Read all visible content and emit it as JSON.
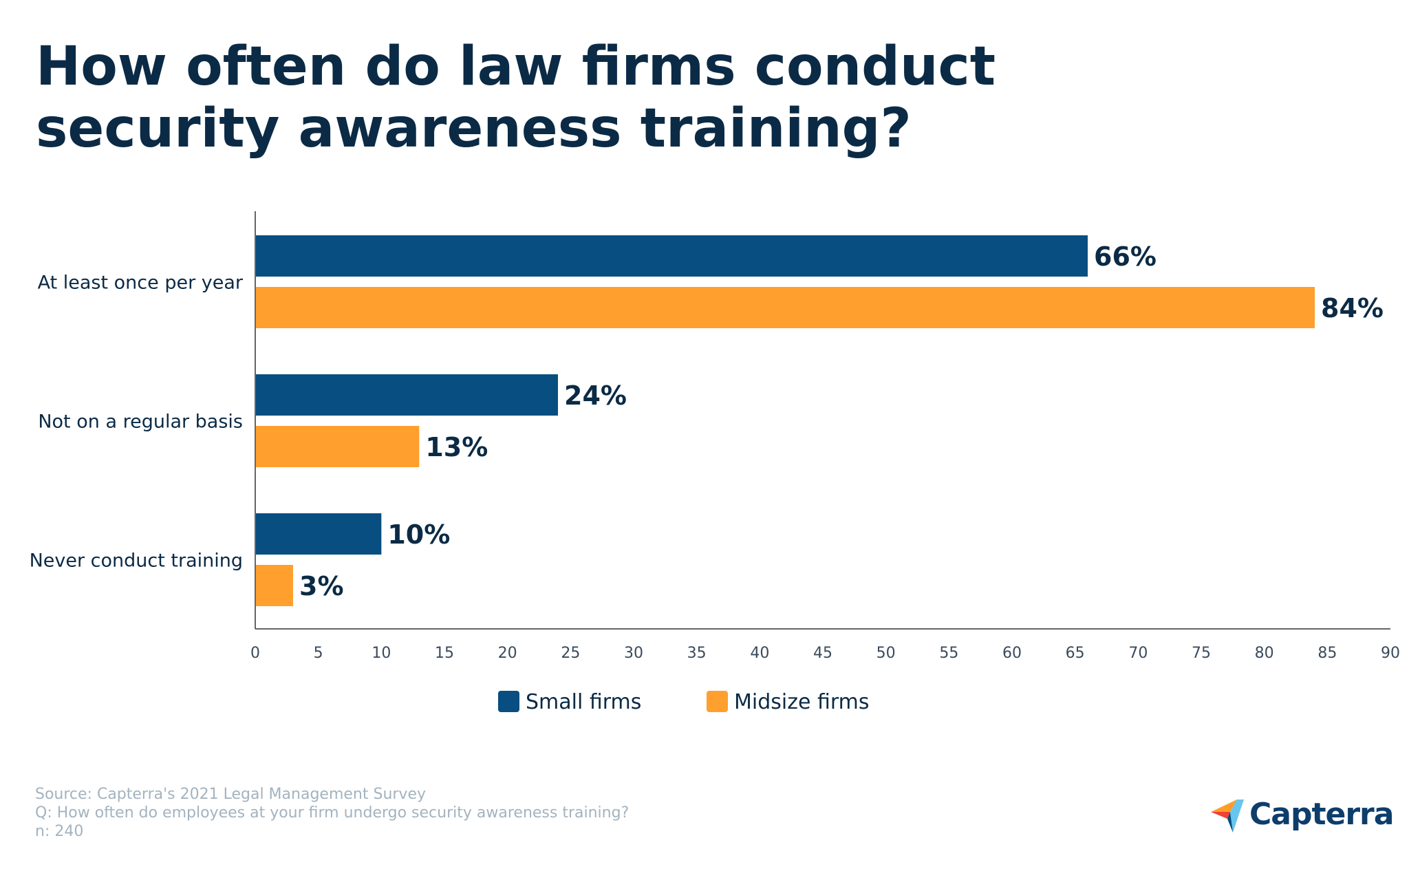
{
  "title": "How often do law firms conduct security awareness training?",
  "footer": {
    "source": "Source: Capterra's 2021 Legal Management Survey",
    "question": "Q: How often do employees at your firm undergo security awareness training?",
    "n": "n: 240"
  },
  "logo": {
    "text": "Capterra"
  },
  "colors": {
    "small": "#084e80",
    "midsize": "#ff9f2d",
    "text_dark": "#0b2a45",
    "footer": "#a3b3bf"
  },
  "chart_data": {
    "type": "bar",
    "orientation": "horizontal",
    "title": "How often do law firms conduct security awareness training?",
    "categories": [
      "At least once per year",
      "Not on a regular basis",
      "Never conduct training"
    ],
    "series": [
      {
        "name": "Small firms",
        "values": [
          66,
          24,
          10
        ],
        "labels": [
          "66%",
          "24%",
          "10%"
        ],
        "color": "#084e80"
      },
      {
        "name": "Midsize firms",
        "values": [
          84,
          13,
          3
        ],
        "labels": [
          "84%",
          "13%",
          "3%"
        ],
        "color": "#ff9f2d"
      }
    ],
    "xlim": [
      0,
      90
    ],
    "xticks": [
      0,
      5,
      10,
      15,
      20,
      25,
      30,
      35,
      40,
      45,
      50,
      55,
      60,
      65,
      70,
      75,
      80,
      85,
      90
    ],
    "xlabel": "",
    "ylabel": "",
    "grid": false,
    "legend": "bottom"
  }
}
